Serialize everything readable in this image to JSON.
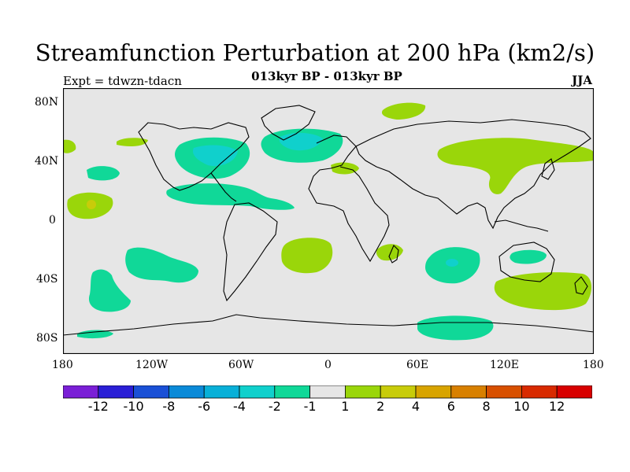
{
  "title": "Streamfunction Perturbation at 200 hPa (km2/s)",
  "subtitle": "013kyr BP - 013kyr BP",
  "left_label": "Expt = tdwzn-tdacn",
  "right_label": "JJA",
  "lat_labels": [
    "80N",
    "40N",
    "0",
    "40S",
    "80S"
  ],
  "lon_labels": [
    "180",
    "120W",
    "60W",
    "0",
    "60E",
    "120E",
    "180"
  ],
  "colorbar": {
    "colors": [
      "#7a1fd6",
      "#2a1fd6",
      "#1a50d6",
      "#0a8ad8",
      "#08b0d8",
      "#10d0cc",
      "#10d898",
      "#e6e6e6",
      "#9ad60a",
      "#c8cc0a",
      "#d8a400",
      "#d88000",
      "#d85000",
      "#d82a00",
      "#d80000"
    ],
    "labels": [
      "-12",
      "-10",
      "-8",
      "-6",
      "-4",
      "-2",
      "-1",
      "1",
      "2",
      "4",
      "6",
      "8",
      "10",
      "12"
    ]
  },
  "colors": {
    "neutral": "#e6e6e6",
    "neg1": "#10d898",
    "neg2": "#10d0cc",
    "neg3": "#08b0d8",
    "pos1": "#9ad60a",
    "pos2": "#c8cc0a"
  }
}
